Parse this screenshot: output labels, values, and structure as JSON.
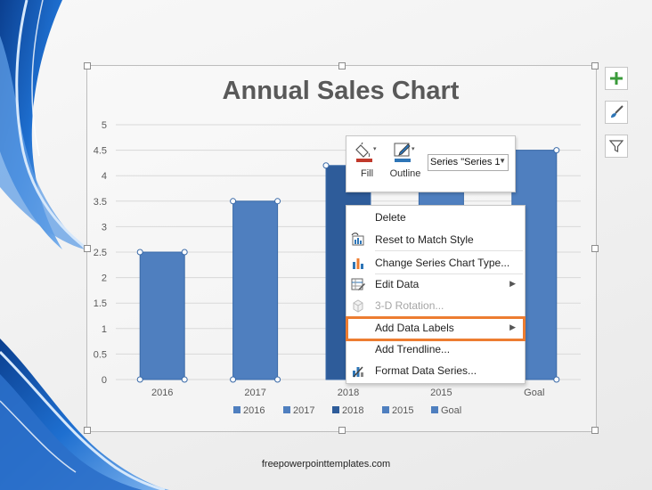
{
  "footer": {
    "text": "freepowerpointtemplates.com"
  },
  "chart_data": {
    "type": "bar",
    "title": "Annual Sales Chart",
    "categories": [
      "2016",
      "2017",
      "2018",
      "2015",
      "Goal"
    ],
    "values": [
      2.5,
      3.5,
      4.2,
      4.3,
      4.5
    ],
    "series": [
      {
        "name": "2016",
        "values": [
          2.5,
          null,
          null,
          null,
          null
        ]
      },
      {
        "name": "2017",
        "values": [
          null,
          3.5,
          null,
          null,
          null
        ]
      },
      {
        "name": "2018",
        "values": [
          null,
          null,
          4.2,
          null,
          null
        ]
      },
      {
        "name": "2015",
        "values": [
          null,
          null,
          null,
          4.3,
          null
        ]
      },
      {
        "name": "Goal",
        "values": [
          null,
          null,
          null,
          null,
          4.5
        ]
      }
    ],
    "legend": [
      "2016",
      "2017",
      "2018",
      "2015",
      "Goal"
    ],
    "legend_position": "bottom",
    "yticks": [
      "0",
      "0.5",
      "1",
      "1.5",
      "2",
      "2.5",
      "3",
      "3.5",
      "4",
      "4.5",
      "5"
    ],
    "ylim": [
      0,
      5
    ],
    "grid": true,
    "colors": {
      "bar": "#4f7fbf",
      "bar_selected": "#2e5c9a",
      "bar_edge": "#3a6aa8"
    },
    "selected_category": "2018"
  },
  "side_tools": [
    {
      "name": "chart-elements-button",
      "icon": "plus-icon"
    },
    {
      "name": "chart-styles-button",
      "icon": "brush-icon"
    },
    {
      "name": "chart-filters-button",
      "icon": "funnel-icon"
    }
  ],
  "mini_toolbar": {
    "fill_label": "Fill",
    "outline_label": "Outline",
    "series_value": "Series \"Series 1",
    "fill_color": "#c0392b",
    "outline_color": "#2e75b6"
  },
  "context_menu": {
    "items": [
      {
        "label": "Delete",
        "icon": "delete-icon",
        "submenu": false,
        "disabled": false
      },
      {
        "label": "Reset to Match Style",
        "icon": "reset-style-icon",
        "submenu": false,
        "disabled": false
      },
      {
        "label": "Change Series Chart Type...",
        "icon": "chart-type-icon",
        "submenu": false,
        "disabled": false
      },
      {
        "label": "Edit Data",
        "icon": "edit-data-icon",
        "submenu": true,
        "disabled": false
      },
      {
        "label": "3-D Rotation...",
        "icon": "rotation-icon",
        "submenu": false,
        "disabled": true
      },
      {
        "label": "Add Data Labels",
        "icon": "",
        "submenu": true,
        "disabled": false,
        "highlighted": true
      },
      {
        "label": "Add Trendline...",
        "icon": "",
        "submenu": false,
        "disabled": false
      },
      {
        "label": "Format Data Series...",
        "icon": "format-series-icon",
        "submenu": false,
        "disabled": false
      }
    ],
    "highlight_color": "#ed7d31"
  }
}
